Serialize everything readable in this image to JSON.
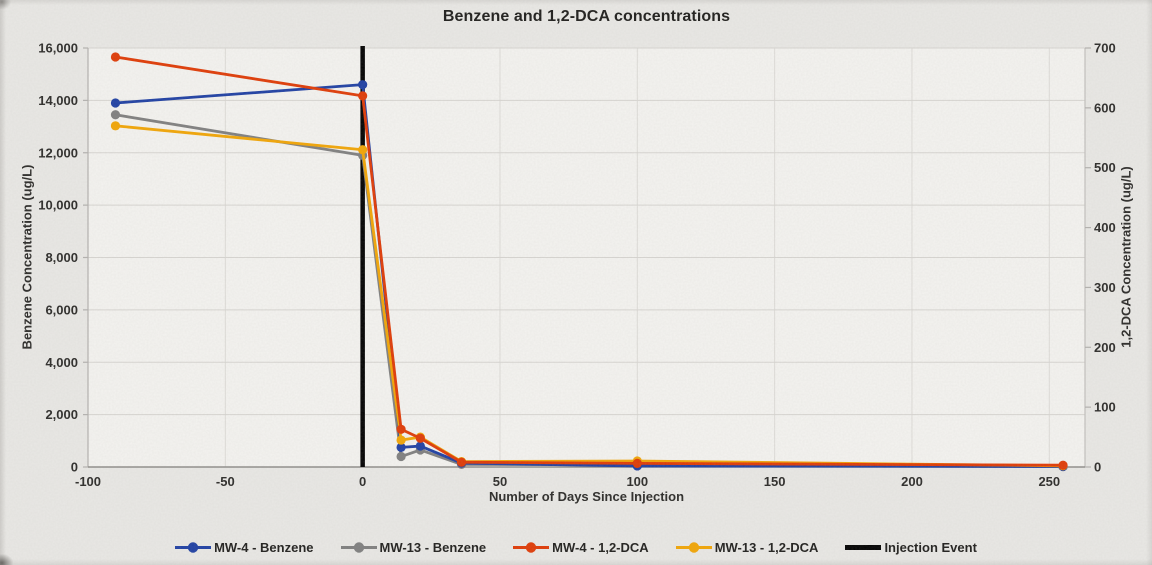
{
  "title": "Benzene and 1,2-DCA concentrations",
  "axes": {
    "x_label": "Number of Days Since Injection",
    "y_left_label": "Benzene Concentration (ug/L)",
    "y_right_label": "1,2-DCA Concentration (ug/L)"
  },
  "chart_data": {
    "type": "line",
    "title": "Benzene and 1,2-DCA concentrations",
    "xlabel": "Number of Days Since Injection",
    "ylabel_left": "Benzene Concentration (ug/L)",
    "ylabel_right": "1,2-DCA Concentration (ug/L)",
    "x": [
      -90,
      0,
      14,
      21,
      36,
      100,
      255
    ],
    "xlim": [
      -100,
      263
    ],
    "x_tick_values": [
      -100,
      -50,
      0,
      50,
      100,
      150,
      200,
      250
    ],
    "x_ticks": [
      "-100",
      "-50",
      "0",
      "50",
      "100",
      "150",
      "200",
      "250"
    ],
    "y_left": {
      "lim": [
        0,
        16000
      ],
      "tick_values": [
        0,
        2000,
        4000,
        6000,
        8000,
        10000,
        12000,
        14000,
        16000
      ],
      "ticks": [
        "0",
        "2,000",
        "4,000",
        "6,000",
        "8,000",
        "10,000",
        "12,000",
        "14,000",
        "16,000"
      ]
    },
    "y_right": {
      "lim": [
        0,
        700
      ],
      "tick_values": [
        0,
        100,
        200,
        300,
        400,
        500,
        600,
        700
      ],
      "ticks": [
        "0",
        "100",
        "200",
        "300",
        "400",
        "500",
        "600",
        "700"
      ]
    },
    "grid": true,
    "legend_position": "bottom",
    "series": [
      {
        "name": "MW-4 - Benzene",
        "axis": "left",
        "color": "#1e3fa3",
        "values": [
          13900,
          14600,
          750,
          800,
          150,
          40,
          20
        ]
      },
      {
        "name": "MW-13 - Benzene",
        "axis": "left",
        "color": "#7f7f7f",
        "values": [
          13450,
          11900,
          400,
          650,
          100,
          80,
          20
        ]
      },
      {
        "name": "MW-4 - 1,2-DCA",
        "axis": "right",
        "color": "#e03a05",
        "values": [
          685,
          620,
          63,
          48,
          8,
          6,
          3
        ]
      },
      {
        "name": "MW-13 - 1,2-DCA",
        "axis": "right",
        "color": "#f2a505",
        "values": [
          570,
          530,
          45,
          50,
          9,
          10,
          2
        ]
      }
    ],
    "annotations": [
      {
        "name": "Injection Event",
        "type": "vline",
        "x": 0,
        "color": "#000000",
        "width": 4.5
      }
    ]
  },
  "legend": {
    "entries": [
      {
        "label": "MW-4 - Benzene",
        "color": "#1e3fa3",
        "marker": "line-circle"
      },
      {
        "label": "MW-13 - Benzene",
        "color": "#7f7f7f",
        "marker": "line-circle"
      },
      {
        "label": "MW-4 - 1,2-DCA",
        "color": "#e03a05",
        "marker": "line-circle"
      },
      {
        "label": "MW-13 - 1,2-DCA",
        "color": "#f2a505",
        "marker": "line-circle"
      },
      {
        "label": "Injection Event",
        "color": "#000000",
        "marker": "line"
      }
    ]
  }
}
